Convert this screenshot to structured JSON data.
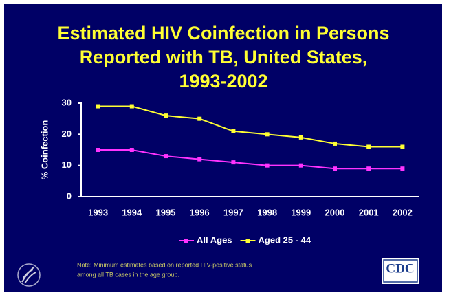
{
  "chart_data": {
    "type": "line",
    "title": [
      "Estimated HIV Coinfection in Persons",
      "Reported with TB, United States,",
      "1993-2002"
    ],
    "ylabel": "% Coinfection",
    "categories": [
      "1993",
      "1994",
      "1995",
      "1996",
      "1997",
      "1998",
      "1999",
      "2000",
      "2001",
      "2002"
    ],
    "series": [
      {
        "name": "All Ages",
        "color": "#ff33ff",
        "values": [
          15,
          15,
          13,
          12,
          11,
          10,
          10,
          9,
          9,
          9
        ]
      },
      {
        "name": "Aged 25 - 44",
        "color": "#ffff33",
        "values": [
          29,
          29,
          26,
          25,
          21,
          20,
          19,
          17,
          16,
          16
        ]
      }
    ],
    "ylim": [
      0,
      30
    ],
    "yticks": [
      0,
      10,
      20,
      30
    ],
    "grid": false,
    "legend": "bottom",
    "note": [
      "Note: Minimum estimates based on reported HIV-positive status",
      "among all TB cases in the age group."
    ],
    "logo_text": "CDC"
  }
}
